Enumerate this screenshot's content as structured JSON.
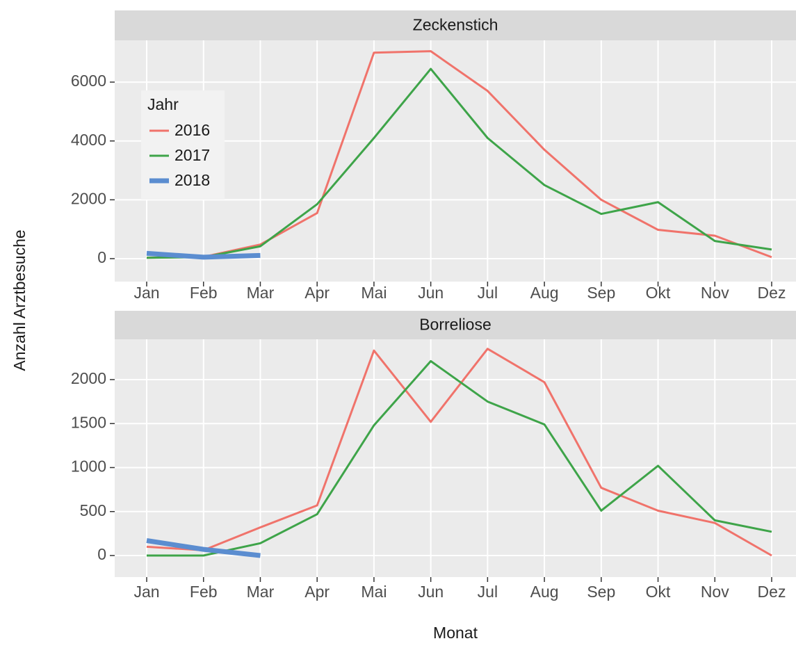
{
  "chart_data": [
    {
      "type": "line",
      "title": "Zeckenstich",
      "y_label": "Anzahl Arztbesuche",
      "categories": [
        "Jan",
        "Feb",
        "Mar",
        "Apr",
        "Mai",
        "Jun",
        "Jul",
        "Aug",
        "Sep",
        "Okt",
        "Nov",
        "Dez"
      ],
      "legend_title": "Jahr",
      "legend": "top-left",
      "series": [
        {
          "name": "2016",
          "color": "#f0736b",
          "values": [
            30,
            60,
            480,
            1550,
            7000,
            7050,
            5700,
            3700,
            2000,
            980,
            780,
            50
          ]
        },
        {
          "name": "2017",
          "color": "#3ea449",
          "values": [
            30,
            50,
            420,
            1850,
            4100,
            6450,
            4100,
            2500,
            1520,
            1920,
            600,
            310
          ]
        },
        {
          "name": "2018",
          "color": "#5b8dd0",
          "values": [
            180,
            50,
            110,
            null,
            null,
            null,
            null,
            null,
            null,
            null,
            null,
            null
          ]
        }
      ],
      "ylim": [
        -780,
        7420
      ],
      "yticks": [
        0,
        2000,
        4000,
        6000
      ],
      "grid": true
    },
    {
      "type": "line",
      "title": "Borreliose",
      "x_label": "Monat",
      "categories": [
        "Jan",
        "Feb",
        "Mar",
        "Apr",
        "Mai",
        "Jun",
        "Jul",
        "Aug",
        "Sep",
        "Okt",
        "Nov",
        "Dez"
      ],
      "series": [
        {
          "color": "#f0736b",
          "values": [
            100,
            60,
            320,
            570,
            2330,
            1520,
            2350,
            1970,
            770,
            510,
            370,
            0
          ]
        },
        {
          "color": "#3ea449",
          "values": [
            0,
            0,
            140,
            470,
            1480,
            2210,
            1750,
            1490,
            510,
            1020,
            400,
            270
          ]
        },
        {
          "color": "#5b8dd0",
          "values": [
            170,
            70,
            0,
            null,
            null,
            null,
            null,
            null,
            null,
            null,
            null,
            null
          ]
        }
      ],
      "ylim": [
        -245,
        2458
      ],
      "yticks": [
        0,
        500,
        1000,
        1500,
        2000
      ],
      "grid": true
    }
  ]
}
